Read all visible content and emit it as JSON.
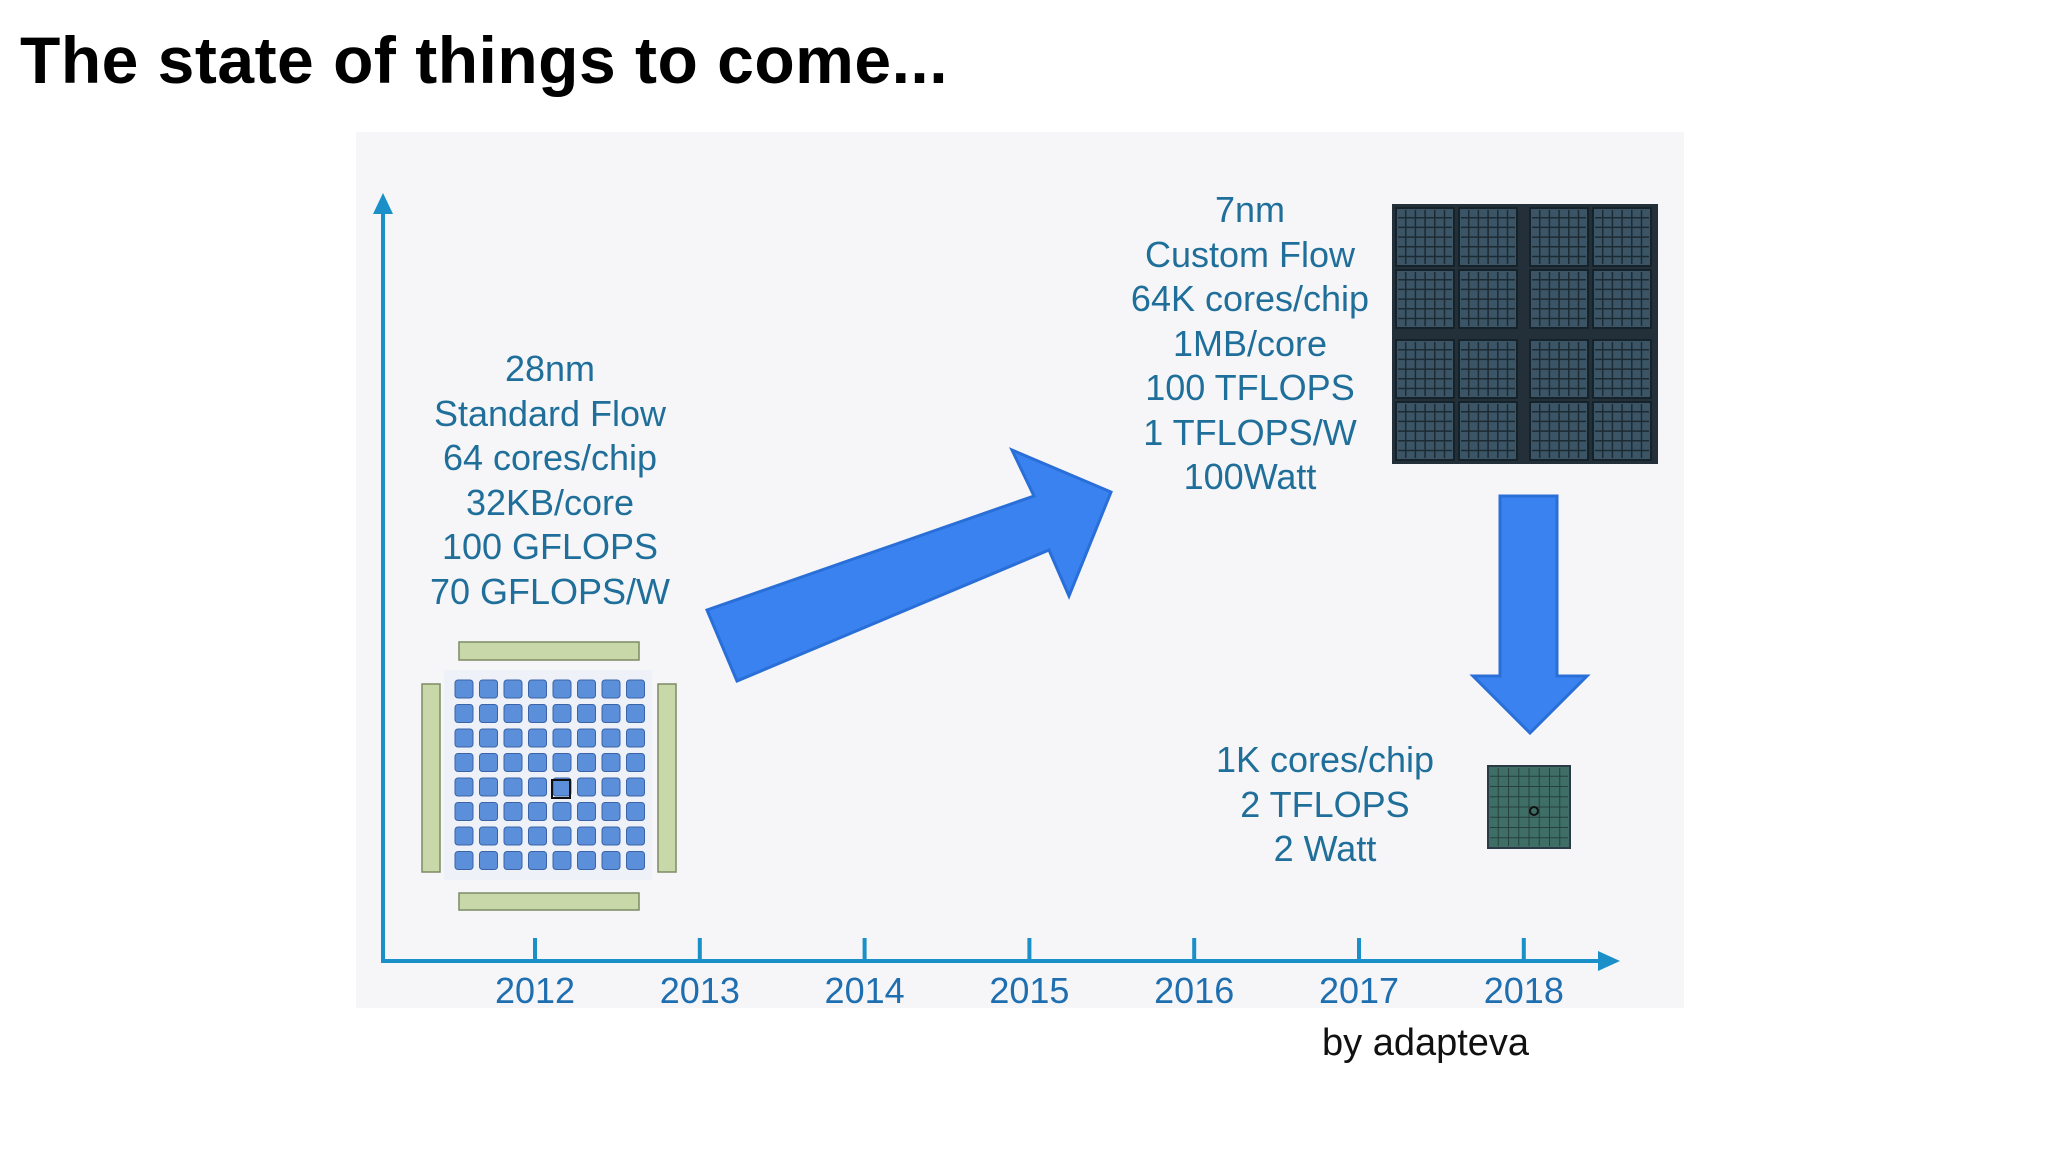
{
  "slide": {
    "title": "The state of things to come...",
    "credit": "by adapteva"
  },
  "timeline": {
    "years": [
      "2012",
      "2013",
      "2014",
      "2015",
      "2016",
      "2017",
      "2018"
    ]
  },
  "blocks": {
    "chip_2012": [
      "28nm",
      "Standard Flow",
      "64 cores/chip",
      "32KB/core",
      "100 GFLOPS",
      "70 GFLOPS/W"
    ],
    "chip_2018_large": [
      "7nm",
      "Custom Flow",
      "64K cores/chip",
      "1MB/core",
      "100 TFLOPS",
      "1 TFLOPS/W",
      "100Watt"
    ],
    "chip_2018_small": [
      "1K cores/chip",
      "2 TFLOPS",
      "2 Watt"
    ]
  },
  "colors": {
    "axis": "#1a8fc8",
    "text": "#1f6f9a",
    "arrow": "#3a82f0",
    "arrow_edge": "#2a6fd8",
    "chip_core": "#5b8fd9",
    "chip_dark": "#2b3a44"
  }
}
